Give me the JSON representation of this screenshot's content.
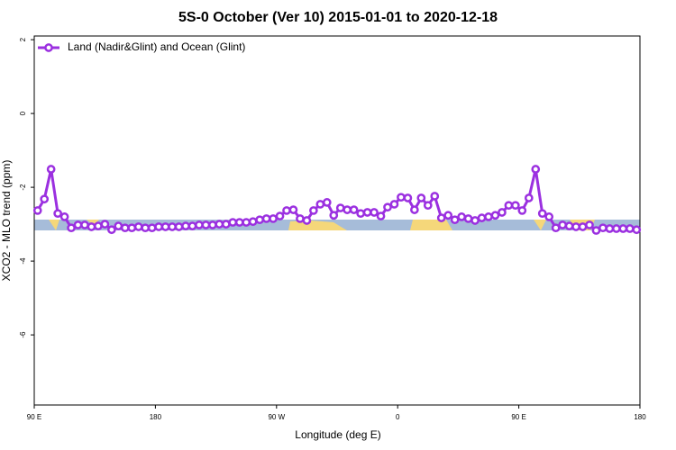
{
  "chart_data": {
    "type": "line",
    "title": "5S-0 October (Ver 10)   2015-01-01 to 2020-12-18",
    "x_label": "Longitude (deg E)",
    "y_label": "XCO2 - MLO trend (ppm)",
    "xlim": [
      90,
      540
    ],
    "ylim": [
      -7.9,
      2.1
    ],
    "xticks": [
      {
        "value": 90,
        "label": "90 E"
      },
      180,
      {
        "value": 270,
        "label": "90 W"
      },
      {
        "value": 360,
        "label": "0"
      },
      {
        "value": 450,
        "label": "90 E"
      },
      {
        "value": 540,
        "label": "180"
      }
    ],
    "yticks": [
      2,
      0,
      -2,
      -4,
      -6
    ],
    "legend": "upper left",
    "x": [
      92.5,
      97.5,
      102.5,
      107.5,
      112.5,
      117.5,
      122.5,
      127.5,
      132.5,
      137.5,
      142.5,
      147.5,
      152.5,
      157.5,
      162.5,
      167.5,
      172.5,
      177.5,
      182.5,
      187.5,
      192.5,
      197.5,
      202.5,
      207.5,
      212.5,
      217.5,
      222.5,
      227.5,
      232.5,
      237.5,
      242.5,
      247.5,
      252.5,
      257.5,
      262.5,
      267.5,
      272.5,
      277.5,
      282.5,
      287.5,
      292.5,
      297.5,
      302.5,
      307.5,
      312.5,
      317.5,
      322.5,
      327.5,
      332.5,
      337.5,
      342.5,
      347.5,
      352.5,
      357.5,
      362.5,
      367.5,
      372.5,
      377.5,
      382.5,
      387.5,
      392.5,
      397.5,
      402.5,
      407.5,
      412.5,
      417.5,
      422.5,
      427.5,
      432.5,
      437.5,
      442.5,
      447.5,
      452.5,
      457.5,
      462.5,
      467.5,
      472.5,
      477.5,
      482.5,
      487.5,
      492.5,
      497.5,
      502.5,
      507.5,
      512.5,
      517.5,
      522.5,
      527.5,
      532.5,
      537.5
    ],
    "series": [
      {
        "name": "Land (Nadir&Glint) and Ocean (Glint)",
        "color": "#9b30e0",
        "values": [
          -2.63,
          -2.32,
          -1.51,
          -2.71,
          -2.8,
          -3.1,
          -3.02,
          -3.02,
          -3.07,
          -3.05,
          -3.0,
          -3.15,
          -3.05,
          -3.1,
          -3.1,
          -3.07,
          -3.1,
          -3.1,
          -3.07,
          -3.07,
          -3.07,
          -3.07,
          -3.05,
          -3.05,
          -3.02,
          -3.02,
          -3.02,
          -3.0,
          -3.0,
          -2.95,
          -2.95,
          -2.95,
          -2.93,
          -2.88,
          -2.85,
          -2.85,
          -2.78,
          -2.63,
          -2.61,
          -2.85,
          -2.9,
          -2.63,
          -2.46,
          -2.41,
          -2.76,
          -2.56,
          -2.61,
          -2.61,
          -2.71,
          -2.68,
          -2.68,
          -2.78,
          -2.54,
          -2.46,
          -2.27,
          -2.29,
          -2.61,
          -2.29,
          -2.49,
          -2.24,
          -2.83,
          -2.76,
          -2.88,
          -2.8,
          -2.85,
          -2.9,
          -2.83,
          -2.8,
          -2.76,
          -2.68,
          -2.49,
          -2.49,
          -2.63,
          -2.29,
          -1.51,
          -2.71,
          -2.8,
          -3.1,
          -3.02,
          -3.05,
          -3.07,
          -3.07,
          -3.02,
          -3.17,
          -3.1,
          -3.12,
          -3.12,
          -3.12,
          -3.12,
          -3.15
        ]
      }
    ]
  }
}
